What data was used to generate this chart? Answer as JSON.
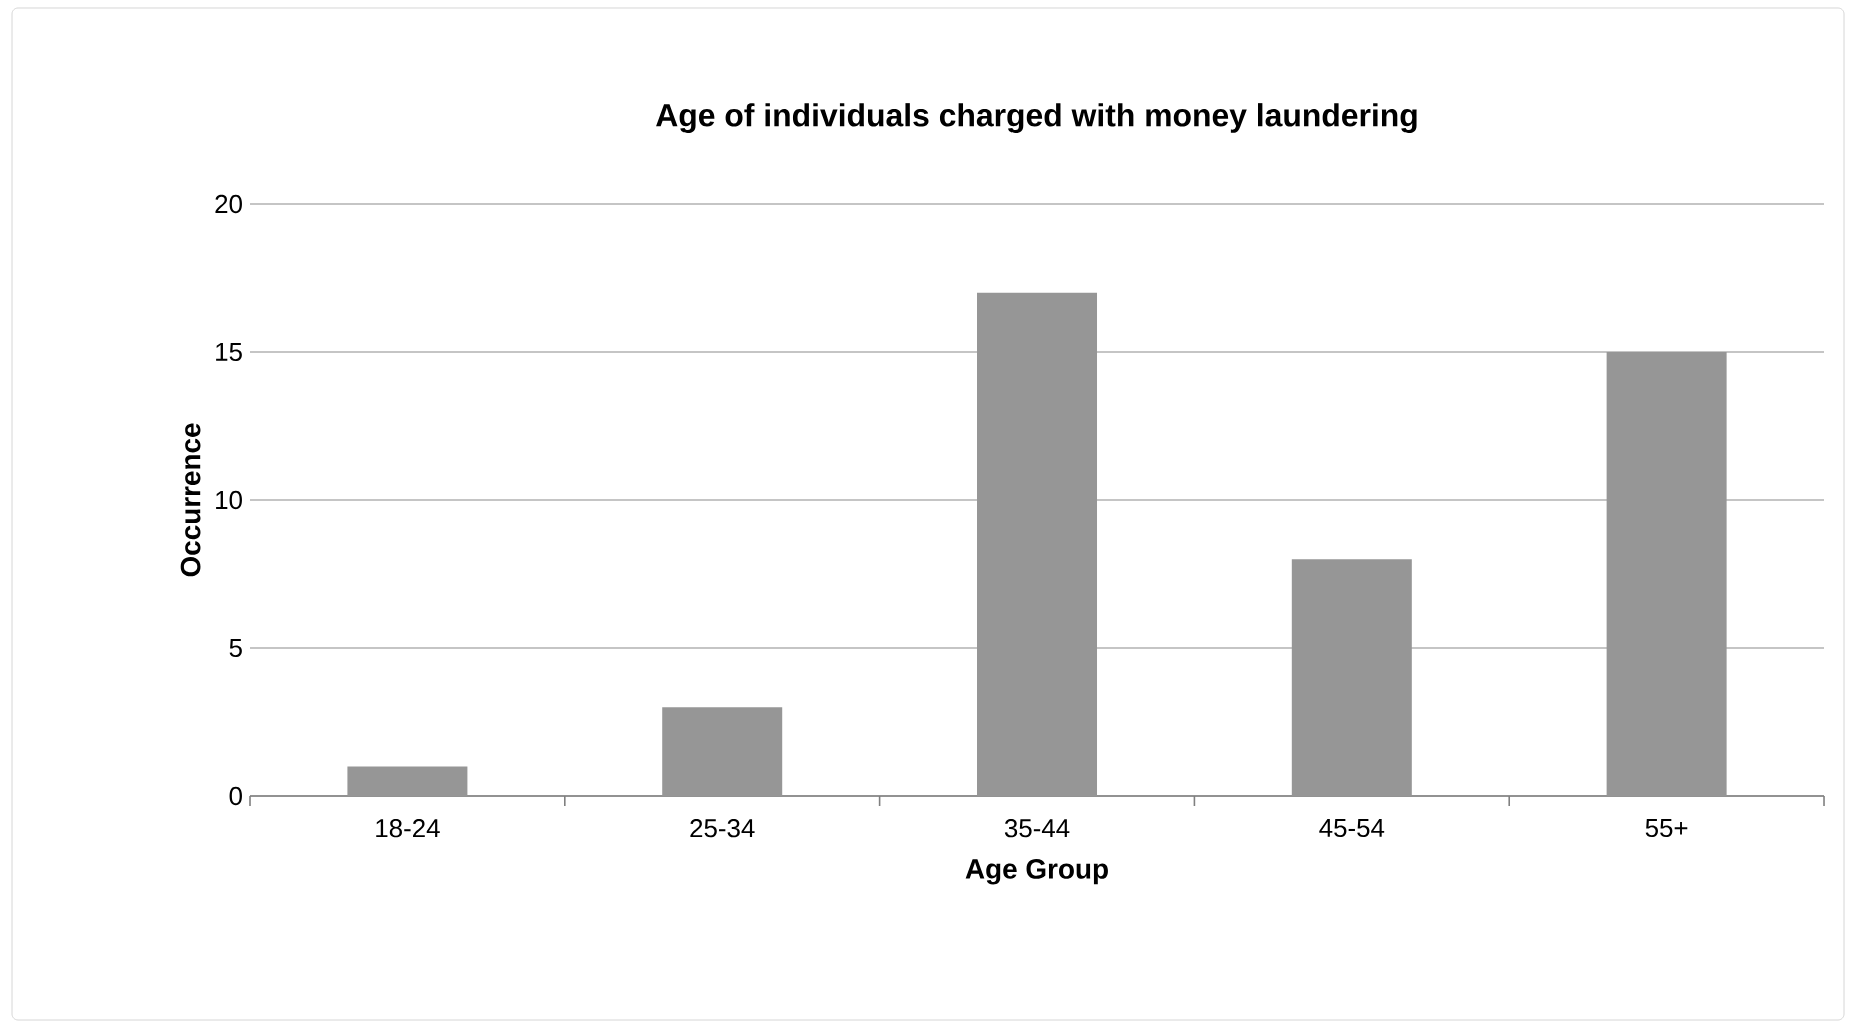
{
  "chart_data": {
    "type": "bar",
    "title": "Age of individuals charged with money laundering",
    "xlabel": "Age Group",
    "ylabel": "Occurrence",
    "categories": [
      "18-24",
      "25-34",
      "35-44",
      "45-54",
      "55+"
    ],
    "values": [
      1,
      3,
      17,
      8,
      15
    ],
    "color": "#969696",
    "ylim": [
      0,
      20
    ],
    "yticks": [
      0,
      5,
      10,
      15,
      20
    ],
    "grid": "y"
  }
}
